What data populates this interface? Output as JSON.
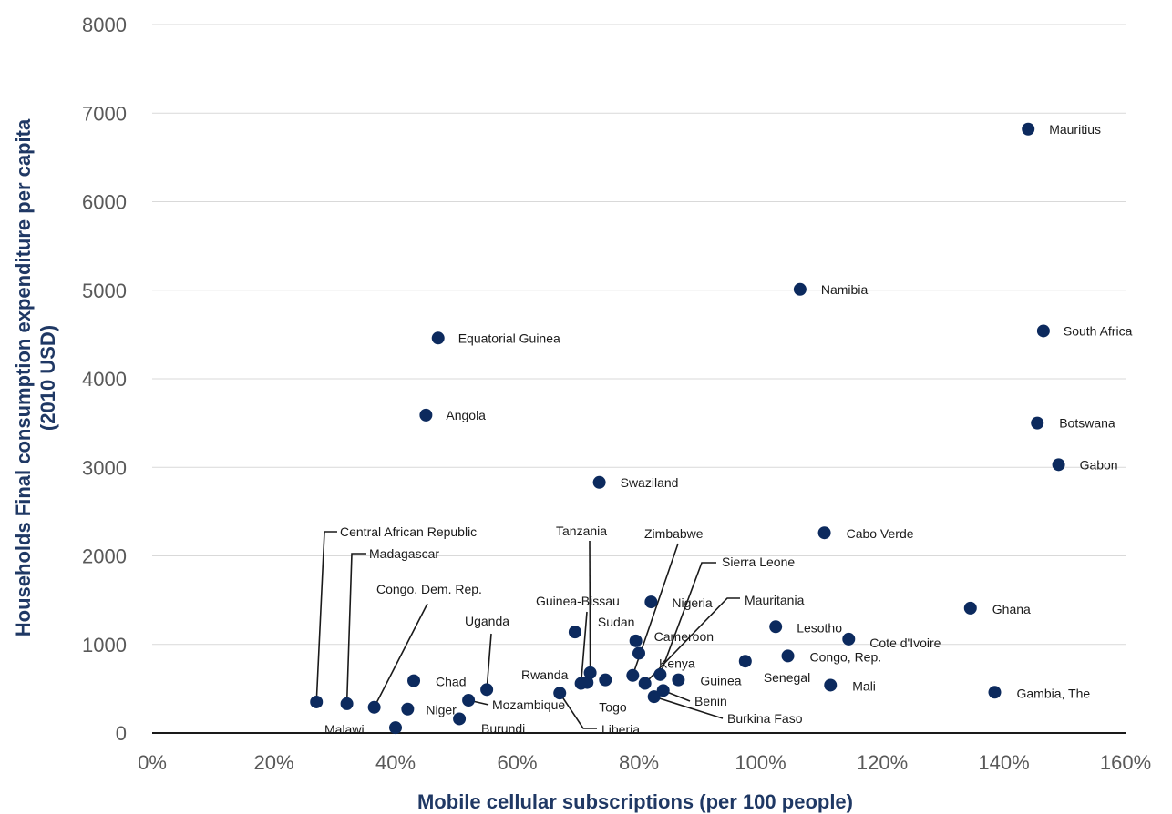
{
  "chart_data": {
    "type": "scatter",
    "xlabel": "Mobile cellular subscriptions (per 100 people)",
    "ylabel_line1": "Households Final consumption expenditure per capita",
    "ylabel_line2": "(2010 USD)",
    "xlim": [
      0,
      160
    ],
    "ylim": [
      0,
      8000
    ],
    "x_ticks": [
      0,
      20,
      40,
      60,
      80,
      100,
      120,
      140,
      160
    ],
    "x_tick_labels": [
      "0%",
      "20%",
      "40%",
      "60%",
      "80%",
      "100%",
      "120%",
      "140%",
      "160%"
    ],
    "y_ticks": [
      0,
      1000,
      2000,
      3000,
      4000,
      5000,
      6000,
      7000,
      8000
    ],
    "y_tick_labels": [
      "0",
      "1000",
      "2000",
      "3000",
      "4000",
      "5000",
      "6000",
      "7000",
      "8000"
    ],
    "grid": "horizontal",
    "marker_color": "#0c2a5e",
    "points": [
      {
        "name": "Mauritius",
        "x": 144,
        "y": 6820
      },
      {
        "name": "Namibia",
        "x": 106.5,
        "y": 5010
      },
      {
        "name": "South Africa",
        "x": 146.5,
        "y": 4540
      },
      {
        "name": "Equatorial Guinea",
        "x": 47,
        "y": 4460
      },
      {
        "name": "Angola",
        "x": 45,
        "y": 3590
      },
      {
        "name": "Botswana",
        "x": 145.5,
        "y": 3500
      },
      {
        "name": "Gabon",
        "x": 149,
        "y": 3030
      },
      {
        "name": "Swaziland",
        "x": 73.5,
        "y": 2830
      },
      {
        "name": "Cabo Verde",
        "x": 110.5,
        "y": 2260
      },
      {
        "name": "Ghana",
        "x": 134.5,
        "y": 1410
      },
      {
        "name": "Nigeria",
        "x": 82,
        "y": 1480
      },
      {
        "name": "Lesotho",
        "x": 102.5,
        "y": 1200
      },
      {
        "name": "Cote d'Ivoire",
        "x": 114.5,
        "y": 1060
      },
      {
        "name": "Sudan",
        "x": 69.5,
        "y": 1140
      },
      {
        "name": "Cameroon",
        "x": 79.5,
        "y": 1040
      },
      {
        "name": "Kenya",
        "x": 80,
        "y": 900
      },
      {
        "name": "Congo, Rep.",
        "x": 104.5,
        "y": 870
      },
      {
        "name": "Senegal",
        "x": 97.5,
        "y": 810
      },
      {
        "name": "Tanzania",
        "x": 72,
        "y": 680
      },
      {
        "name": "Zimbabwe",
        "x": 79,
        "y": 650
      },
      {
        "name": "Sierra Leone",
        "x": 83.5,
        "y": 660
      },
      {
        "name": "Guinea",
        "x": 86.5,
        "y": 600
      },
      {
        "name": "Guinea-Bissau",
        "x": 70.5,
        "y": 560
      },
      {
        "name": "Togo",
        "x": 74.5,
        "y": 600
      },
      {
        "name": "Rwanda",
        "x": 71.5,
        "y": 570
      },
      {
        "name": "Mauritania",
        "x": 81,
        "y": 560
      },
      {
        "name": "Mali",
        "x": 111.5,
        "y": 540
      },
      {
        "name": "Chad",
        "x": 43,
        "y": 590
      },
      {
        "name": "Uganda",
        "x": 55,
        "y": 490
      },
      {
        "name": "Benin",
        "x": 84,
        "y": 480
      },
      {
        "name": "Gambia, The",
        "x": 138.5,
        "y": 460
      },
      {
        "name": "Liberia",
        "x": 67,
        "y": 450
      },
      {
        "name": "Burkina Faso",
        "x": 82.5,
        "y": 410
      },
      {
        "name": "Mozambique",
        "x": 52,
        "y": 370
      },
      {
        "name": "Central African Republic",
        "x": 27,
        "y": 350
      },
      {
        "name": "Madagascar",
        "x": 32,
        "y": 330
      },
      {
        "name": "Congo, Dem. Rep.",
        "x": 36.5,
        "y": 290
      },
      {
        "name": "Niger",
        "x": 42,
        "y": 270
      },
      {
        "name": "Burundi",
        "x": 50.5,
        "y": 160
      },
      {
        "name": "Malawi",
        "x": 40,
        "y": 60
      }
    ]
  }
}
